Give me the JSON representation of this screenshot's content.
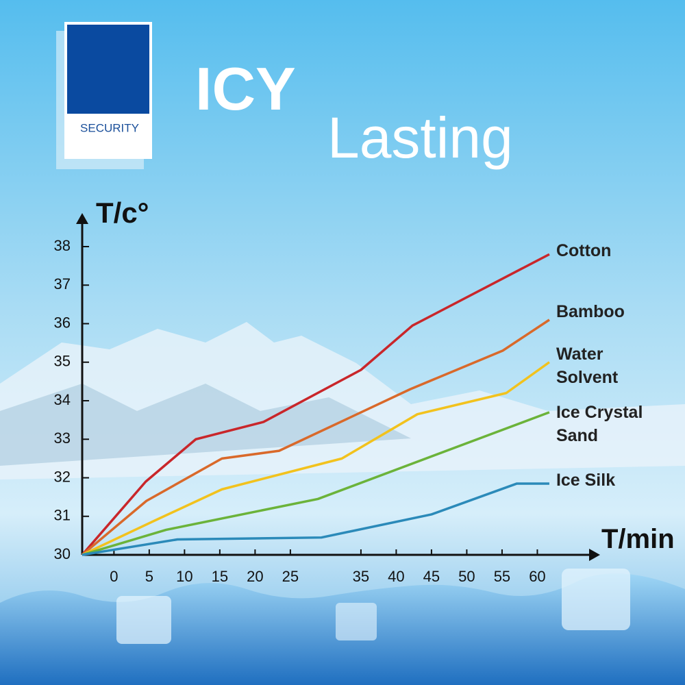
{
  "brand": "SECURITY",
  "headline": {
    "line1": "ICY",
    "line2": "Lasting"
  },
  "chart_data": {
    "type": "line",
    "y_label": "T/c°",
    "x_label": "T/min",
    "xlim": [
      -4.5,
      68.5
    ],
    "xticks": [
      0,
      5,
      10,
      15,
      20,
      25,
      35,
      40,
      45,
      50,
      55,
      60
    ],
    "ylim": [
      30,
      38.8
    ],
    "yticks": [
      30,
      31,
      32,
      33,
      34,
      35,
      36,
      37,
      38
    ],
    "series": [
      {
        "name": "Cotton",
        "color": "#c9262a",
        "x": [
          -4.5,
          4.5,
          11.6,
          21.2,
          35,
          42.3,
          61.7
        ],
        "values": [
          30,
          31.9,
          33.0,
          33.45,
          34.8,
          35.95,
          37.8
        ]
      },
      {
        "name": "Bamboo",
        "color": "#d9692a",
        "x": [
          -4.5,
          4.6,
          15.3,
          23.4,
          42,
          55.1,
          61.7
        ],
        "values": [
          30,
          31.4,
          32.5,
          32.7,
          34.3,
          35.3,
          36.1
        ]
      },
      {
        "name": "Water Solvent",
        "color": "#f2c21d",
        "x": [
          -4.5,
          5.9,
          15.3,
          32.3,
          43,
          55.6,
          61.7
        ],
        "values": [
          30,
          30.9,
          31.7,
          32.5,
          33.65,
          34.2,
          35.0
        ]
      },
      {
        "name": "Ice Crystal Sand",
        "color": "#6bb33a",
        "x": [
          -4.5,
          7.4,
          28.9,
          61.7
        ],
        "values": [
          30,
          30.65,
          31.45,
          33.7
        ]
      },
      {
        "name": "Ice Silk",
        "color": "#2b8ab9",
        "x": [
          -4.5,
          9,
          29.4,
          45,
          57.1,
          61.7
        ],
        "values": [
          30,
          30.4,
          30.45,
          31.05,
          31.85,
          31.85
        ]
      }
    ]
  }
}
